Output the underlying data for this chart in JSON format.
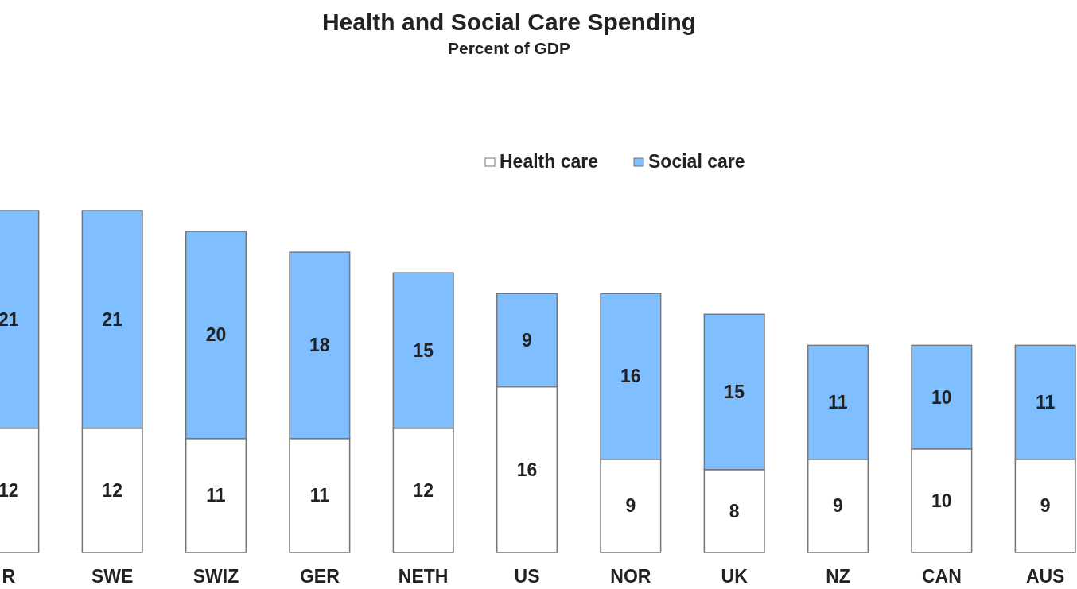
{
  "chart_data": {
    "type": "bar",
    "title": "Health and Social Care Spending",
    "subtitle": "Percent of GDP",
    "categories": [
      "R",
      "SWE",
      "SWIZ",
      "GER",
      "NETH",
      "US",
      "NOR",
      "UK",
      "NZ",
      "CAN",
      "AUS"
    ],
    "stacked": true,
    "data_labels": true,
    "legend": "top right",
    "series": [
      {
        "name": "Health care",
        "color": "#ffffff",
        "values": [
          12,
          12,
          11,
          11,
          12,
          16,
          9,
          8,
          9,
          10,
          9
        ]
      },
      {
        "name": "Social care",
        "color": "#80bfff",
        "values": [
          21,
          21,
          20,
          18,
          15,
          9,
          16,
          15,
          11,
          10,
          11
        ]
      }
    ]
  }
}
